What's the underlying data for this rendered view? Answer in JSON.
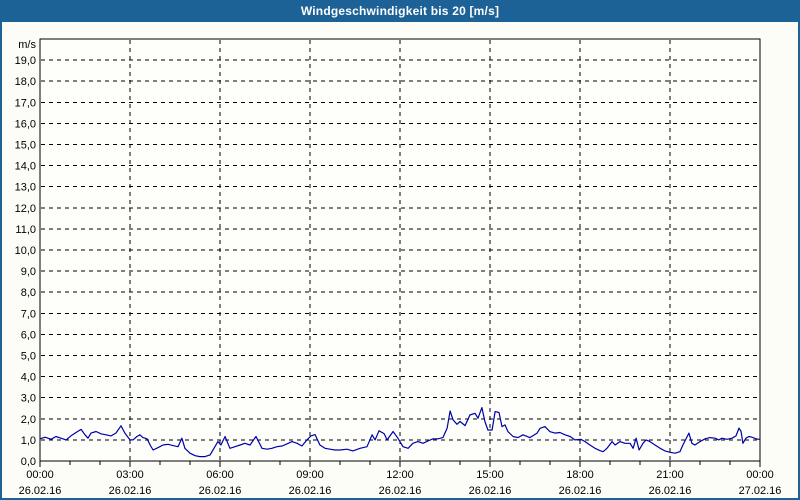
{
  "window": {
    "title": "Windgeschwindigkeit bis 20 [m/s]"
  },
  "colors": {
    "titlebar": "#1D6296",
    "titlebar_text": "#FFFFFF",
    "frame": "#1D6296",
    "page_bg": "#FBFDF6",
    "plot_bg": "#FEFFFB",
    "grid": "#000000",
    "axis": "#000000",
    "text": "#000000",
    "line": "#0000AA"
  },
  "chart_data": {
    "type": "line",
    "title": "Windgeschwindigkeit bis 20 [m/s]",
    "ylabel": "m/s",
    "xlabel": "",
    "ylim": [
      0,
      20
    ],
    "xlim_hours": [
      0,
      24
    ],
    "grid": "dashed",
    "legend": "none",
    "y_tick_step": 1,
    "x_major_step_hours": 3,
    "x_minor_step_hours": 1,
    "y_tick_labels": [
      "0,0",
      "1,0",
      "2,0",
      "3,0",
      "4,0",
      "5,0",
      "6,0",
      "7,0",
      "8,0",
      "9,0",
      "10,0",
      "11,0",
      "12,0",
      "13,0",
      "14,0",
      "15,0",
      "16,0",
      "17,0",
      "18,0",
      "19,0"
    ],
    "x_ticks": [
      {
        "hour": 0,
        "time": "00:00",
        "date": "26.02.16"
      },
      {
        "hour": 3,
        "time": "03:00",
        "date": "26.02.16"
      },
      {
        "hour": 6,
        "time": "06:00",
        "date": "26.02.16"
      },
      {
        "hour": 9,
        "time": "09:00",
        "date": "26.02.16"
      },
      {
        "hour": 12,
        "time": "12:00",
        "date": "26.02.16"
      },
      {
        "hour": 15,
        "time": "15:00",
        "date": "26.02.16"
      },
      {
        "hour": 18,
        "time": "18:00",
        "date": "26.02.16"
      },
      {
        "hour": 21,
        "time": "21:00",
        "date": "26.02.16"
      },
      {
        "hour": 24,
        "time": "00:00",
        "date": "27.02.16"
      }
    ],
    "series": [
      {
        "name": "Windgeschwindigkeit",
        "unit": "m/s",
        "x_hours": [
          0,
          0.17,
          0.37,
          0.53,
          0.7,
          0.87,
          1.03,
          1.2,
          1.37,
          1.5,
          1.6,
          1.7,
          1.87,
          2.03,
          2.2,
          2.37,
          2.53,
          2.7,
          2.83,
          3.0,
          3.1,
          3.23,
          3.33,
          3.43,
          3.57,
          3.67,
          3.77,
          3.93,
          4.1,
          4.27,
          4.43,
          4.6,
          4.73,
          4.83,
          5.0,
          5.17,
          5.33,
          5.5,
          5.67,
          5.83,
          5.93,
          6.03,
          6.17,
          6.33,
          6.5,
          6.67,
          6.83,
          7.0,
          7.2,
          7.4,
          7.57,
          7.73,
          7.9,
          8.07,
          8.23,
          8.4,
          8.57,
          8.73,
          8.9,
          9.03,
          9.17,
          9.33,
          9.5,
          9.67,
          9.83,
          10.0,
          10.23,
          10.43,
          10.67,
          10.9,
          11.07,
          11.17,
          11.3,
          11.47,
          11.57,
          11.77,
          11.93,
          12.1,
          12.27,
          12.43,
          12.6,
          12.77,
          12.93,
          13.1,
          13.27,
          13.43,
          13.57,
          13.67,
          13.77,
          13.9,
          14.0,
          14.17,
          14.33,
          14.5,
          14.6,
          14.73,
          14.83,
          14.93,
          15.07,
          15.17,
          15.3,
          15.4,
          15.5,
          15.6,
          15.77,
          15.93,
          16.1,
          16.33,
          16.57,
          16.67,
          16.83,
          17.0,
          17.17,
          17.33,
          17.5,
          17.67,
          17.83,
          18.03,
          18.17,
          18.33,
          18.5,
          18.67,
          18.77,
          18.9,
          19.07,
          19.17,
          19.33,
          19.5,
          19.67,
          19.77,
          19.87,
          19.97,
          20.1,
          20.2,
          20.33,
          20.5,
          20.67,
          20.83,
          21.0,
          21.17,
          21.33,
          21.43,
          21.63,
          21.73,
          21.83,
          22.0,
          22.17,
          22.33,
          22.5,
          22.63,
          22.73,
          22.9,
          23.07,
          23.2,
          23.3,
          23.37,
          23.43,
          23.53,
          23.63,
          23.73,
          23.87,
          23.97
        ],
        "values": [
          1.05,
          1.13,
          1.03,
          1.16,
          1.08,
          1.0,
          1.19,
          1.35,
          1.5,
          1.24,
          1.08,
          1.32,
          1.4,
          1.29,
          1.24,
          1.19,
          1.32,
          1.67,
          1.32,
          1.0,
          1.0,
          1.16,
          1.24,
          1.11,
          1.05,
          0.76,
          0.52,
          0.63,
          0.76,
          0.79,
          0.73,
          0.68,
          1.08,
          0.6,
          0.37,
          0.25,
          0.21,
          0.21,
          0.29,
          0.68,
          0.92,
          0.76,
          1.16,
          0.6,
          0.68,
          0.76,
          0.84,
          0.76,
          1.16,
          0.6,
          0.56,
          0.6,
          0.68,
          0.71,
          0.81,
          0.92,
          0.84,
          0.71,
          1.0,
          1.19,
          1.25,
          0.76,
          0.6,
          0.56,
          0.52,
          0.52,
          0.56,
          0.48,
          0.6,
          0.68,
          1.24,
          1.0,
          1.43,
          1.3,
          1.0,
          1.4,
          1.08,
          0.68,
          0.6,
          0.84,
          0.92,
          0.84,
          0.95,
          1.05,
          1.05,
          1.11,
          1.55,
          2.37,
          1.95,
          1.74,
          1.87,
          1.68,
          2.18,
          2.26,
          2.03,
          2.53,
          1.87,
          1.47,
          1.47,
          2.34,
          2.3,
          1.63,
          1.71,
          1.39,
          1.16,
          1.11,
          1.24,
          1.11,
          1.32,
          1.55,
          1.63,
          1.39,
          1.32,
          1.35,
          1.24,
          1.16,
          1.0,
          1.03,
          0.92,
          0.76,
          0.6,
          0.49,
          0.44,
          0.6,
          0.92,
          0.76,
          0.92,
          0.84,
          0.84,
          0.6,
          1.08,
          0.52,
          0.84,
          1.0,
          0.92,
          0.76,
          0.6,
          0.48,
          0.41,
          0.37,
          0.44,
          0.76,
          1.32,
          0.84,
          0.76,
          0.92,
          1.05,
          1.11,
          1.08,
          1.0,
          1.08,
          1.03,
          1.08,
          1.19,
          1.56,
          1.4,
          0.84,
          1.08,
          1.16,
          1.13,
          1.05,
          1.03
        ]
      }
    ]
  }
}
